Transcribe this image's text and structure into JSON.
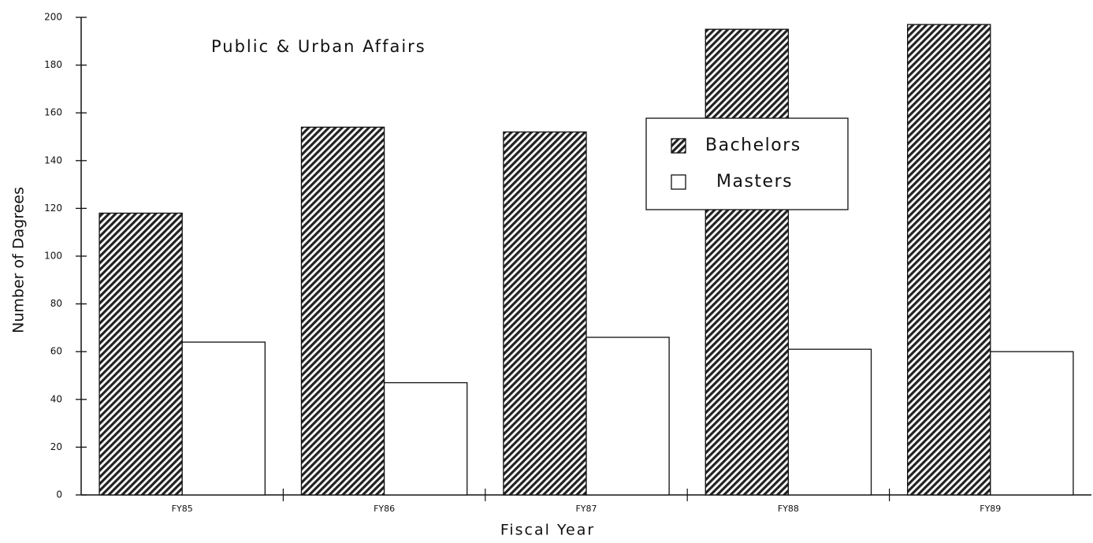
{
  "chart_data": {
    "type": "bar",
    "title": "Public & Urban Affairs",
    "x_label": "Fiscal Year",
    "y_label": "Number of Dagrees",
    "categories": [
      "FY85",
      "FY86",
      "FY87",
      "FY88",
      "FY89"
    ],
    "series": [
      {
        "name": "Bachelors",
        "color": "#222222",
        "pattern": "hatch",
        "values": [
          118,
          154,
          152,
          195,
          197
        ]
      },
      {
        "name": "Masters",
        "color": "#ffffff",
        "values": [
          64,
          47,
          66,
          61,
          60
        ]
      }
    ],
    "ylim": [
      0,
      200
    ],
    "yticks": [
      0,
      20,
      40,
      60,
      80,
      100,
      120,
      140,
      160,
      180,
      200
    ],
    "legend": "upper right"
  }
}
